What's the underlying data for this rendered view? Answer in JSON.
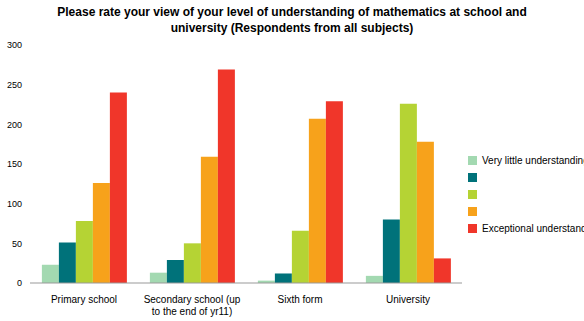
{
  "chart_data": {
    "type": "bar",
    "title": "Please rate your view of your level of understanding of mathematics at school and university (Respondents from all subjects)",
    "categories": [
      "Primary school",
      "Secondary school (up to the end of yr11)",
      "Sixth form",
      "University"
    ],
    "series": [
      {
        "name": "Very little understanding",
        "color": "#a3d9b1",
        "values": [
          23,
          13,
          3,
          9
        ]
      },
      {
        "name": null,
        "color": "#00727a",
        "values": [
          51,
          29,
          12,
          80
        ]
      },
      {
        "name": null,
        "color": "#b5d334",
        "values": [
          78,
          50,
          66,
          226
        ]
      },
      {
        "name": null,
        "color": "#f7a21b",
        "values": [
          126,
          159,
          207,
          178
        ]
      },
      {
        "name": "Exceptional understanding",
        "color": "#f0362a",
        "values": [
          240,
          269,
          229,
          31
        ]
      }
    ],
    "ylim": [
      0,
      300
    ],
    "yticks": [
      0,
      50,
      100,
      150,
      200,
      250,
      300
    ],
    "grid": false,
    "legend": "right"
  }
}
